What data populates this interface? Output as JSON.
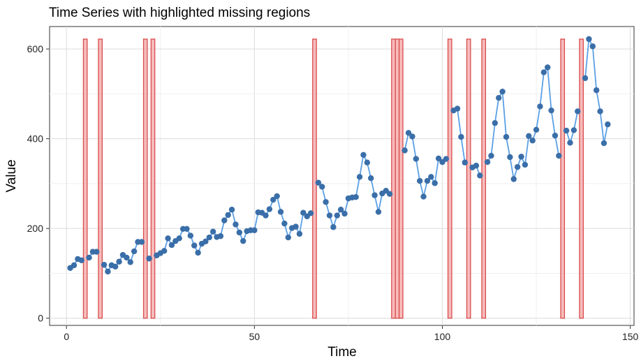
{
  "chart_data": {
    "type": "line",
    "title": "Time Series with highlighted missing regions",
    "xlabel": "Time",
    "ylabel": "Value",
    "xlim": [
      -4.5,
      151
    ],
    "ylim": [
      -16,
      650
    ],
    "xticks": [
      0,
      50,
      100,
      150
    ],
    "yticks": [
      0,
      200,
      400,
      600
    ],
    "grid": true,
    "legend": "none",
    "series": [
      {
        "color": "#5aa0e6",
        "point_color": "#3a6ea8",
        "x": [
          1,
          2,
          3,
          4,
          6,
          7,
          8,
          10,
          11,
          12,
          13,
          14,
          15,
          16,
          17,
          18,
          19,
          20,
          22,
          24,
          25,
          26,
          27,
          28,
          29,
          30,
          31,
          32,
          33,
          34,
          35,
          36,
          37,
          38,
          39,
          40,
          41,
          42,
          43,
          44,
          45,
          46,
          47,
          48,
          49,
          50,
          51,
          52,
          53,
          54,
          55,
          56,
          57,
          58,
          59,
          60,
          61,
          62,
          63,
          64,
          65,
          67,
          68,
          69,
          70,
          71,
          72,
          73,
          74,
          75,
          76,
          77,
          78,
          79,
          80,
          81,
          82,
          83,
          84,
          85,
          86,
          90,
          91,
          92,
          93,
          94,
          95,
          96,
          97,
          98,
          99,
          100,
          101,
          103,
          104,
          105,
          106,
          108,
          109,
          110,
          112,
          113,
          114,
          115,
          116,
          117,
          118,
          119,
          120,
          121,
          122,
          123,
          124,
          125,
          126,
          127,
          128,
          129,
          130,
          131,
          133,
          134,
          135,
          136,
          138,
          139,
          140,
          141,
          142,
          143,
          144
        ],
        "y": [
          112,
          118,
          132,
          129,
          135,
          148,
          148,
          119,
          104,
          118,
          115,
          126,
          141,
          135,
          125,
          149,
          170,
          170,
          133,
          140,
          145,
          150,
          178,
          163,
          172,
          178,
          199,
          199,
          184,
          162,
          146,
          166,
          171,
          180,
          193,
          181,
          183,
          218,
          230,
          242,
          209,
          191,
          172,
          194,
          196,
          196,
          236,
          235,
          229,
          243,
          264,
          272,
          237,
          211,
          180,
          201,
          204,
          188,
          235,
          227,
          234,
          302,
          293,
          259,
          229,
          203,
          229,
          242,
          233,
          267,
          269,
          270,
          315,
          364,
          347,
          312,
          274,
          237,
          278,
          284,
          277,
          374,
          413,
          405,
          355,
          306,
          271,
          306,
          315,
          301,
          356,
          348,
          355,
          463,
          467,
          404,
          347,
          336,
          340,
          318,
          348,
          362,
          435,
          491,
          505,
          404,
          359,
          310,
          337,
          360,
          342,
          406,
          396,
          420,
          472,
          548,
          559,
          463,
          407,
          362,
          418,
          391,
          419,
          461,
          535,
          622,
          606,
          508,
          461,
          390,
          432
        ]
      }
    ],
    "highlighted_regions": [
      5,
      9,
      21,
      23,
      66,
      87,
      88,
      89,
      102,
      107,
      111,
      132,
      137
    ],
    "highlight_color": "#d94c4c",
    "highlight_fill": "#f4a5a5"
  }
}
